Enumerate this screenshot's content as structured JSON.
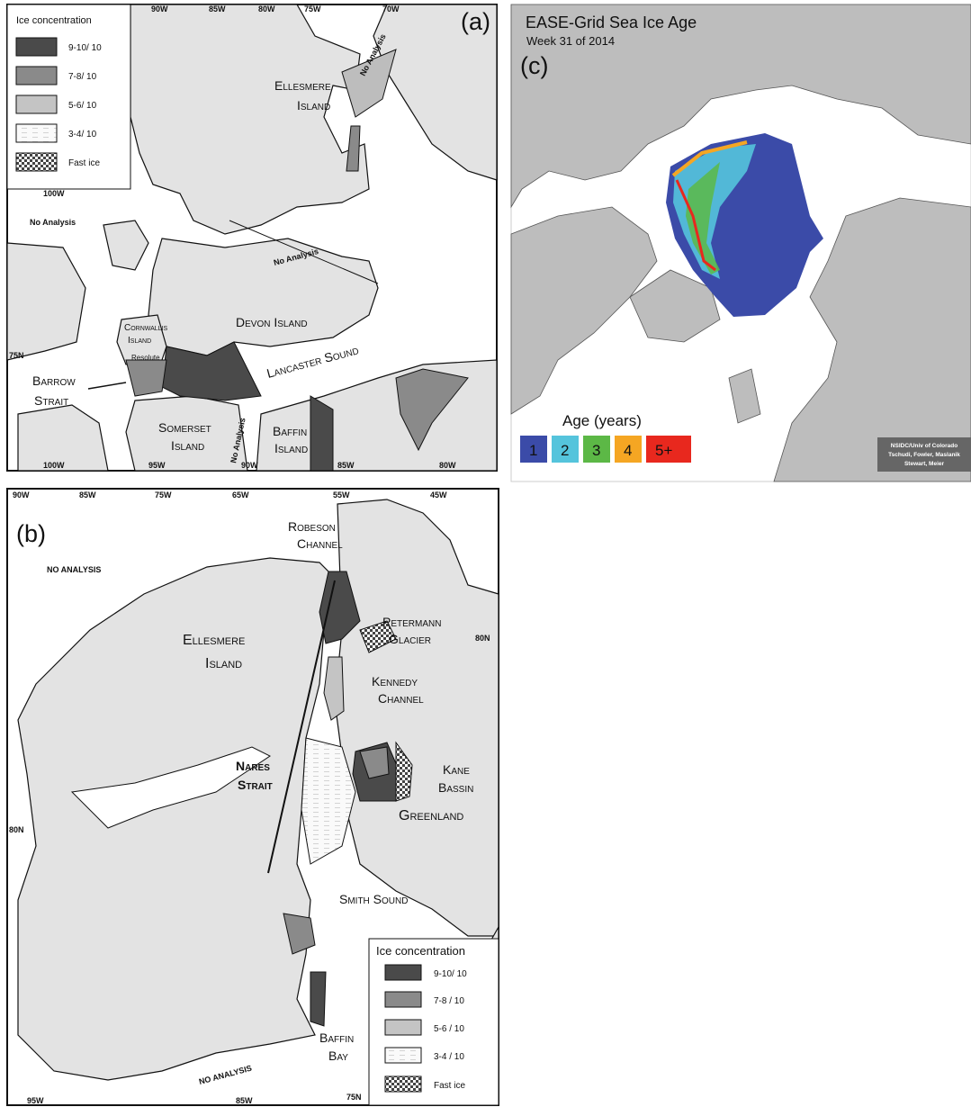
{
  "panel_a": {
    "label": "(a)",
    "legend_title": "Ice concentration",
    "legend_items": [
      "9-10/ 10",
      "7-8/ 10",
      "5-6/ 10",
      "3-4/ 10",
      "Fast ice"
    ],
    "top_ticks": [
      "90W",
      "85W",
      "80W",
      "75W",
      "70W"
    ],
    "bottom_ticks": [
      "100W",
      "95W",
      "90W",
      "85W",
      "80W"
    ],
    "side_ticks": [
      "100W",
      "75N"
    ],
    "no_analysis": [
      "No Analysis",
      "No Analysis",
      "No Analysis",
      "No Analysis"
    ],
    "places": [
      "Ellesmere",
      "Island",
      "Devon Island",
      "Cornwallis",
      "Island",
      "Resolute",
      "Lancaster Sound",
      "Barrow",
      "Strait",
      "Somerset",
      "Island",
      "Baffin",
      "Island"
    ]
  },
  "panel_b": {
    "label": "(b)",
    "legend_title": "Ice concentration",
    "legend_items": [
      "9-10/ 10",
      "7-8 / 10",
      "5-6 / 10",
      "3-4 / 10",
      "Fast ice"
    ],
    "top_ticks": [
      "90W",
      "85W",
      "75W",
      "65W",
      "55W",
      "45W"
    ],
    "bottom_ticks": [
      "95W",
      "85W",
      "75N"
    ],
    "side_ticks": [
      "80N",
      "80N"
    ],
    "no_analysis": [
      "NO ANALYSIS",
      "NO ANALYSIS"
    ],
    "places": [
      "Robeson",
      "Channel",
      "Petermann",
      "Glacier",
      "Ellesmere",
      "Island",
      "Kennedy",
      "Channel",
      "Nares",
      "Strait",
      "Kane",
      "Bassin",
      "Greenland",
      "Smith Sound",
      "Baffin",
      "Bay"
    ]
  },
  "panel_c": {
    "title": "EASE-Grid Sea Ice Age",
    "subtitle": "Week 31 of 2014",
    "label": "(c)",
    "legend_title": "Age (years)",
    "legend_items": [
      "1",
      "2",
      "3",
      "4",
      "5+"
    ],
    "credit": [
      "NSIDC/Univ of Colorado",
      "Tschudi, Fowler, Maslanik",
      "Stewart, Meier"
    ]
  }
}
